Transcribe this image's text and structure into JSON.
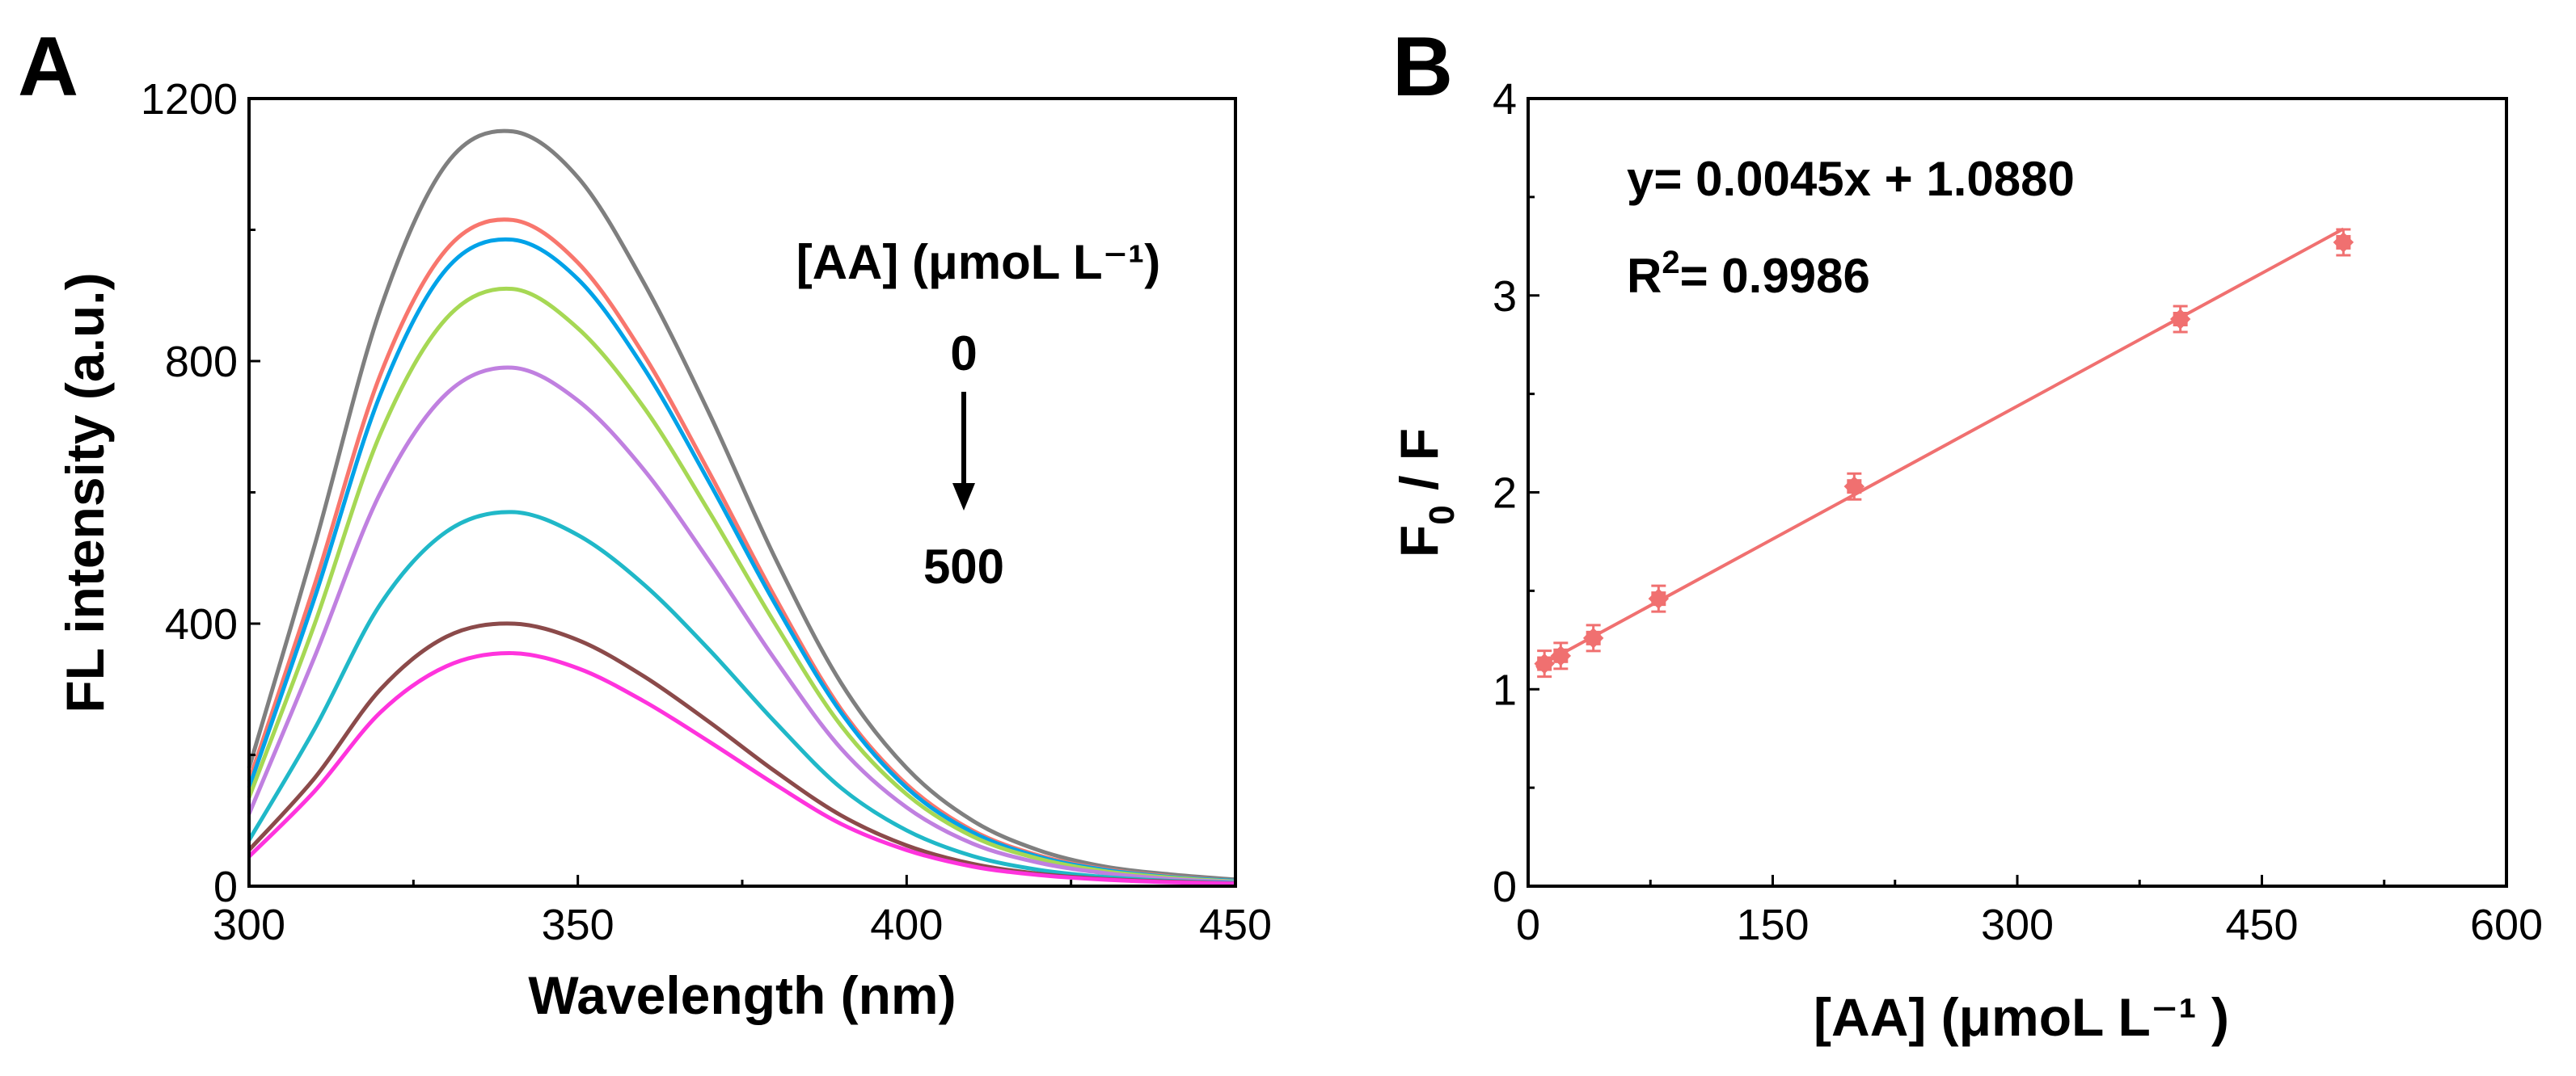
{
  "chart_data": [
    {
      "type": "line",
      "panel": "A",
      "xlabel": "Wavelength (nm)",
      "ylabel": "FL intensity (a.u.)",
      "xlim": [
        300,
        450
      ],
      "ylim": [
        0,
        1200
      ],
      "xticks": [
        300,
        350,
        400,
        450
      ],
      "yticks": [
        0,
        400,
        800,
        1200
      ],
      "legend_title": "[AA] (μmoL L⁻¹)",
      "arrow_start": "0",
      "arrow_end": "500",
      "x": [
        300,
        310,
        320,
        330,
        340,
        350,
        360,
        370,
        380,
        390,
        400,
        410,
        420,
        430,
        440,
        450
      ],
      "series": [
        {
          "color": "#7f7f7f",
          "values": [
            180,
            520,
            880,
            1100,
            1150,
            1080,
            920,
            720,
            500,
            310,
            180,
            100,
            55,
            30,
            18,
            10
          ]
        },
        {
          "color": "#f8766d",
          "values": [
            160,
            460,
            780,
            970,
            1015,
            950,
            810,
            630,
            440,
            270,
            155,
            85,
            47,
            26,
            15,
            8
          ]
        },
        {
          "color": "#00a2e8",
          "values": [
            150,
            440,
            750,
            940,
            985,
            925,
            790,
            615,
            430,
            265,
            150,
            82,
            45,
            25,
            14,
            8
          ]
        },
        {
          "color": "#a6d854",
          "values": [
            135,
            400,
            690,
            865,
            910,
            850,
            730,
            570,
            400,
            245,
            140,
            76,
            42,
            23,
            13,
            7
          ]
        },
        {
          "color": "#c080e0",
          "values": [
            110,
            350,
            600,
            750,
            790,
            740,
            635,
            495,
            345,
            210,
            120,
            65,
            36,
            20,
            11,
            6
          ]
        },
        {
          "color": "#20b8c8",
          "values": [
            70,
            240,
            430,
            540,
            570,
            535,
            460,
            360,
            250,
            150,
            85,
            46,
            25,
            14,
            8,
            5
          ]
        },
        {
          "color": "#8b4a4a",
          "values": [
            55,
            165,
            300,
            380,
            400,
            375,
            320,
            250,
            175,
            108,
            62,
            34,
            19,
            11,
            7,
            4
          ]
        },
        {
          "color": "#ff33dd",
          "values": [
            45,
            145,
            265,
            335,
            355,
            332,
            282,
            220,
            155,
            95,
            55,
            30,
            17,
            10,
            6,
            4
          ]
        }
      ]
    },
    {
      "type": "scatter",
      "panel": "B",
      "xlabel": "[AA] (μmoL L⁻¹ )",
      "ylabel_main": "F",
      "ylabel_sub": "0",
      "ylabel_tail": " / F",
      "xlim": [
        0,
        600
      ],
      "ylim": [
        0,
        4
      ],
      "xticks": [
        0,
        150,
        300,
        450,
        600
      ],
      "yticks": [
        0,
        1,
        2,
        3,
        4
      ],
      "color": "#f07070",
      "points": {
        "x": [
          10,
          20,
          40,
          80,
          200,
          400,
          500
        ],
        "y": [
          1.13,
          1.17,
          1.26,
          1.46,
          2.03,
          2.88,
          3.27
        ]
      },
      "fit": {
        "slope": 0.0045,
        "intercept": 1.088,
        "x_range": [
          5,
          500
        ]
      },
      "equation": "y= 0.0045x + 1.0880",
      "r2_prefix": "R",
      "r2_sup": "2",
      "r2_value": "= 0.9986"
    }
  ],
  "panels": {
    "a_label": "A",
    "b_label": "B"
  }
}
